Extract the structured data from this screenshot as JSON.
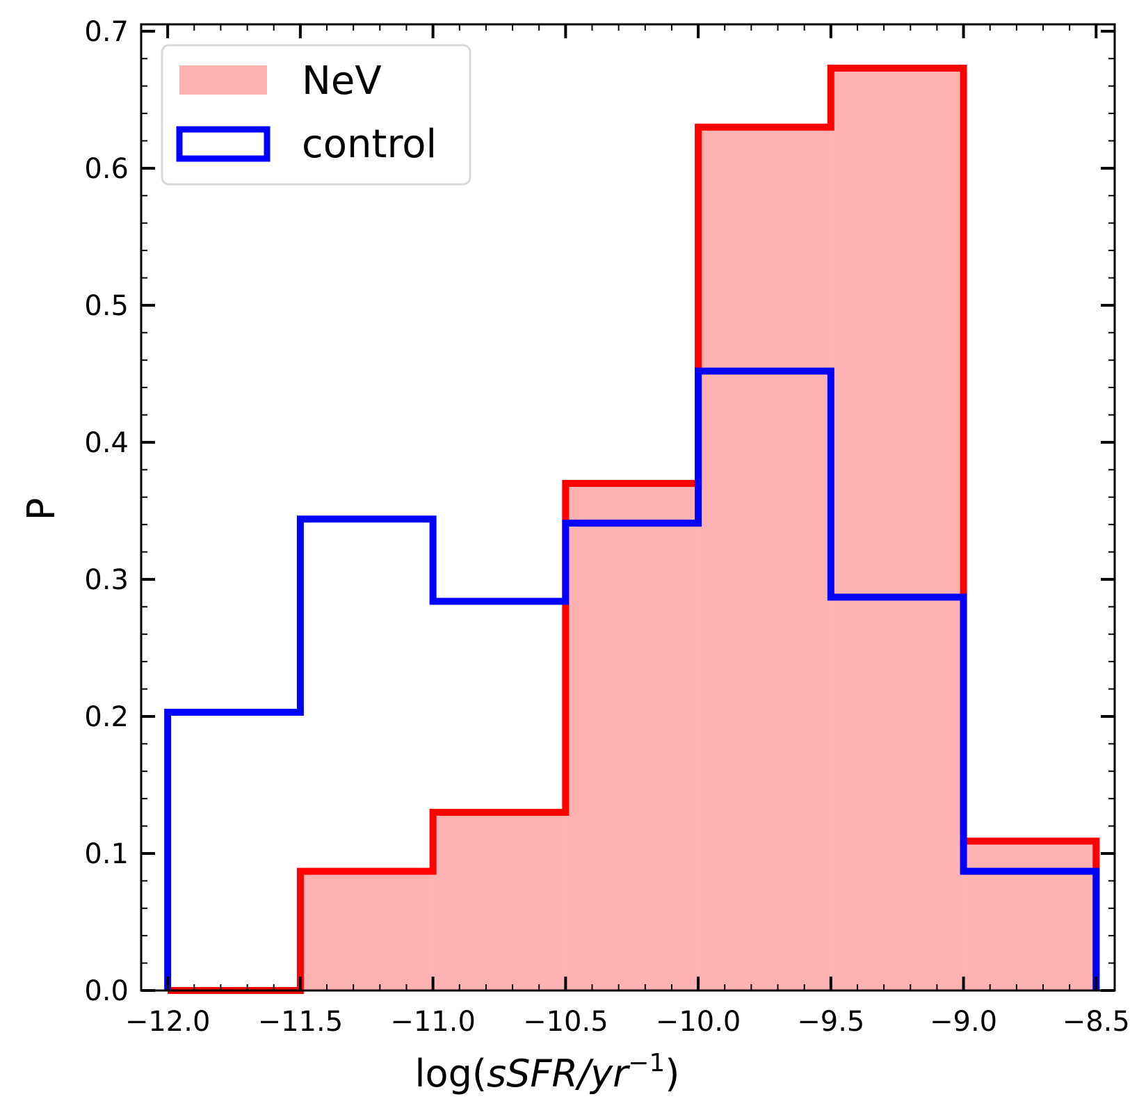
{
  "chart_data": {
    "type": "histogram",
    "xlabel": {
      "prefix": "log(",
      "italic": "sSFR/yr",
      "superscript": "−1",
      "suffix": ")"
    },
    "ylabel": "P",
    "xlim": [
      -12.1,
      -8.43
    ],
    "ylim": [
      0,
      0.705
    ],
    "x_ticks": [
      -12.0,
      -11.5,
      -11.0,
      -10.5,
      -10.0,
      -9.5,
      -9.0,
      -8.5
    ],
    "x_tick_labels": [
      "−12.0",
      "−11.5",
      "−11.0",
      "−10.5",
      "−10.0",
      "−9.5",
      "−9.0",
      "−8.5"
    ],
    "y_ticks": [
      0.0,
      0.1,
      0.2,
      0.3,
      0.4,
      0.5,
      0.6,
      0.7
    ],
    "y_tick_labels": [
      "0.0",
      "0.1",
      "0.2",
      "0.3",
      "0.4",
      "0.5",
      "0.6",
      "0.7"
    ],
    "bin_edges": [
      -12.0,
      -11.5,
      -11.0,
      -10.5,
      -10.0,
      -9.5,
      -9.0,
      -8.5
    ],
    "series": [
      {
        "name": "NeV",
        "style": "stepfilled",
        "fill_color": "#ffb2b2",
        "edge_color": "#ff0000",
        "values": [
          0.0,
          0.087,
          0.13,
          0.37,
          0.63,
          0.673,
          0.109
        ]
      },
      {
        "name": "control",
        "style": "step",
        "edge_color": "#0000ff",
        "values": [
          0.203,
          0.344,
          0.284,
          0.341,
          0.452,
          0.287,
          0.087
        ]
      }
    ],
    "legend": {
      "location": "top-left",
      "entries": [
        "NeV",
        "control"
      ]
    }
  }
}
